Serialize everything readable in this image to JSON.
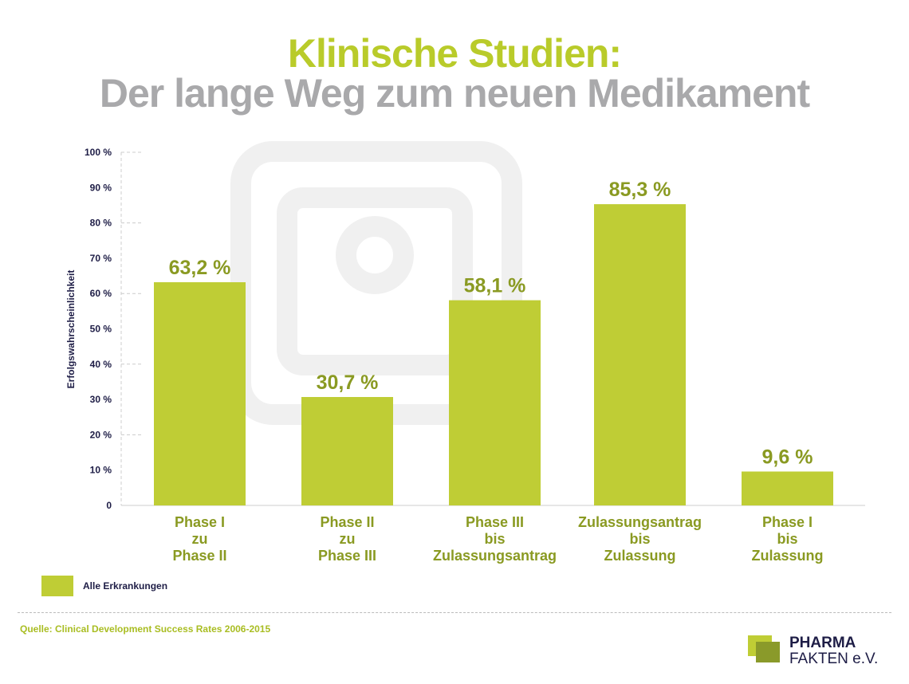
{
  "title_line1": "Klinische Studien:",
  "title_line2": "Der lange Weg zum neuen Medikament",
  "chart_data": {
    "type": "bar",
    "categories": [
      [
        "Phase I",
        "zu",
        "Phase II"
      ],
      [
        "Phase II",
        "zu",
        "Phase III"
      ],
      [
        "Phase III",
        "bis",
        "Zulassungsantrag"
      ],
      [
        "Zulassungsantrag",
        "bis",
        "Zulassung"
      ],
      [
        "Phase I",
        "bis",
        "Zulassung"
      ]
    ],
    "values": [
      63.2,
      30.7,
      58.1,
      85.3,
      9.6
    ],
    "data_labels": [
      "63,2 %",
      "30,7 %",
      "58,1 %",
      "85,3 %",
      "9,6 %"
    ],
    "ylabel": "Erfolgswahrscheinlichkeit",
    "ylim": [
      0,
      100
    ],
    "yticks": [
      0,
      10,
      20,
      30,
      40,
      50,
      60,
      70,
      80,
      90,
      100
    ],
    "ytick_labels": [
      "0",
      "10 %",
      "20 %",
      "30 %",
      "40 %",
      "50 %",
      "60 %",
      "70 %",
      "80 %",
      "90 %",
      "100 %"
    ],
    "series": [
      {
        "name": "Alle Erkrankungen",
        "values": [
          63.2,
          30.7,
          58.1,
          85.3,
          9.6
        ]
      }
    ],
    "colors": {
      "bar": "#bfcd35",
      "label": "#8a9a22",
      "axis_text": "#1e1d46"
    },
    "legend": "bottom-left",
    "grid": false
  },
  "legend_label": "Alle Erkrankungen",
  "source": "Quelle: Clinical Development Success Rates 2006-2015",
  "logo": {
    "line1": "PHARMA",
    "line2": "FAKTEN e.V."
  }
}
